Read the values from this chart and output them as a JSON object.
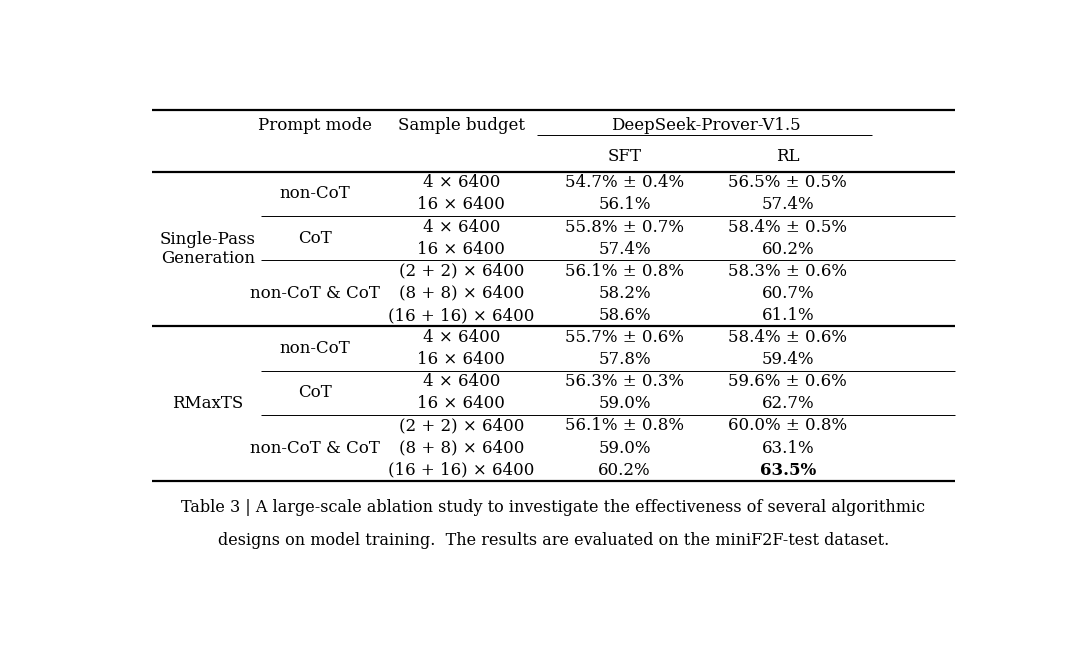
{
  "bg_color": "#ffffff",
  "caption_bold": "Table 3 | ",
  "caption_line1_rest": "A large-scale ablation study to investigate the effectiveness of several algorithmic",
  "caption_line2": "designs on model training.  The results are evaluated on the miniF2F-test dataset.",
  "rows": [
    [
      "4 × 6400",
      "54.7% ± 0.4%",
      "56.5% ± 0.5%"
    ],
    [
      "16 × 6400",
      "56.1%",
      "57.4%"
    ],
    [
      "4 × 6400",
      "55.8% ± 0.7%",
      "58.4% ± 0.5%"
    ],
    [
      "16 × 6400",
      "57.4%",
      "60.2%"
    ],
    [
      "(2 + 2) × 6400",
      "56.1% ± 0.8%",
      "58.3% ± 0.6%"
    ],
    [
      "(8 + 8) × 6400",
      "58.2%",
      "60.7%"
    ],
    [
      "(16 + 16) × 6400",
      "58.6%",
      "61.1%"
    ],
    [
      "4 × 6400",
      "55.7% ± 0.6%",
      "58.4% ± 0.6%"
    ],
    [
      "16 × 6400",
      "57.8%",
      "59.4%"
    ],
    [
      "4 × 6400",
      "56.3% ± 0.3%",
      "59.6% ± 0.6%"
    ],
    [
      "16 × 6400",
      "59.0%",
      "62.7%"
    ],
    [
      "(2 + 2) × 6400",
      "56.1% ± 0.8%",
      "60.0% ± 0.8%"
    ],
    [
      "(8 + 8) × 6400",
      "59.0%",
      "63.1%"
    ],
    [
      "(16 + 16) × 6400",
      "60.2%",
      "63.5%"
    ]
  ],
  "bold_cell": [
    13,
    2
  ],
  "prompt_groups_sp": [
    [
      0,
      1,
      "non-CoT"
    ],
    [
      2,
      3,
      "CoT"
    ],
    [
      4,
      6,
      "non-CoT & CoT"
    ]
  ],
  "prompt_groups_rm": [
    [
      7,
      8,
      "non-CoT"
    ],
    [
      9,
      10,
      "CoT"
    ],
    [
      11,
      13,
      "non-CoT & CoT"
    ]
  ],
  "font_size": 12.0,
  "header_font_size": 12.0,
  "lw_thick": 1.6,
  "lw_thin": 0.7
}
